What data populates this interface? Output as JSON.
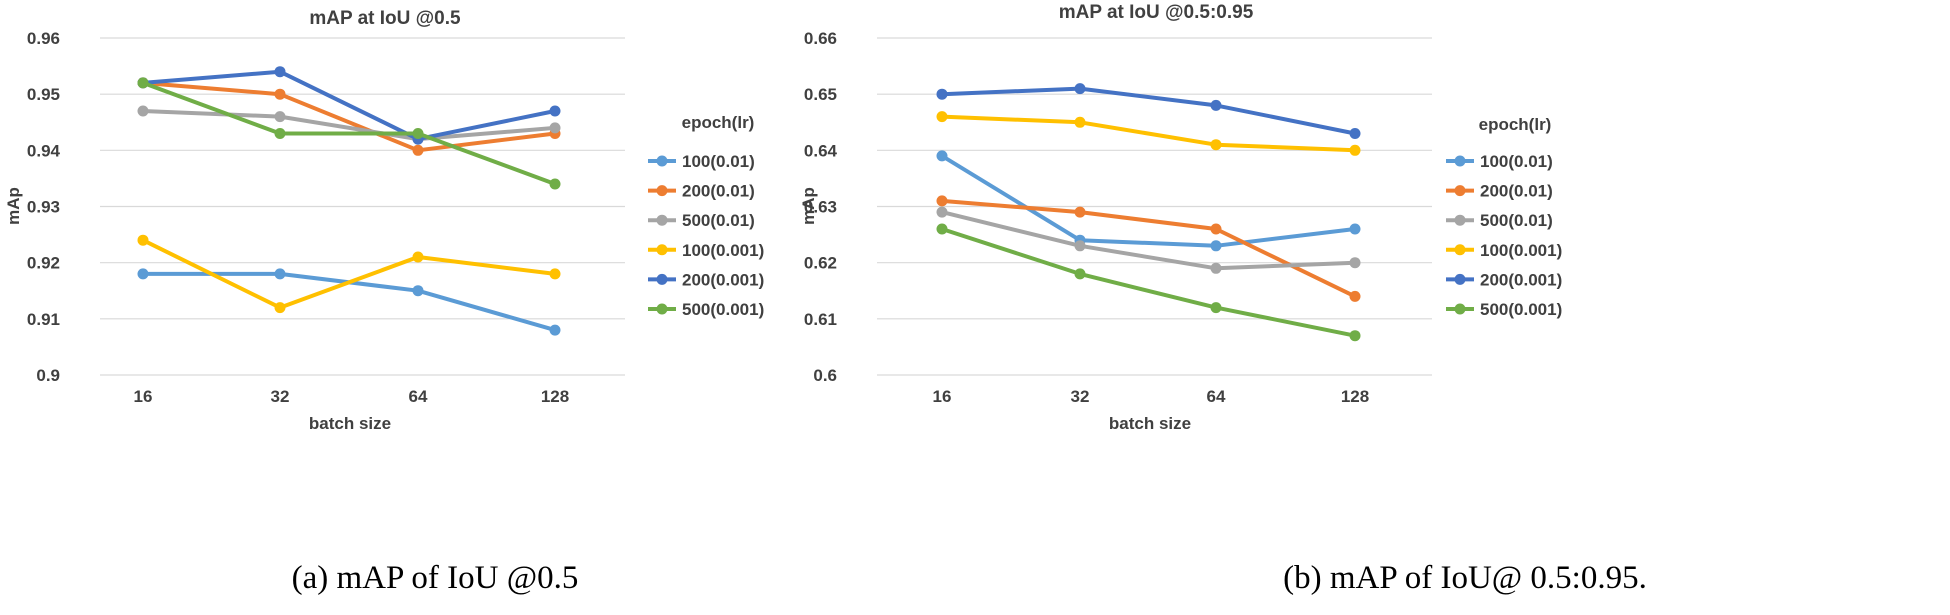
{
  "captions": {
    "a": "(a) mAP of IoU @0.5",
    "b": "(b) mAP of IoU@ 0.5:0.95."
  },
  "colors": {
    "100(0.01)": "#5b9bd5",
    "200(0.01)": "#ed7d31",
    "500(0.01)": "#a5a5a5",
    "100(0.001)": "#ffc000",
    "200(0.001)": "#4472c4",
    "500(0.001)": "#70ad47",
    "grid": "#d9d9d9",
    "text": "#404040"
  },
  "chart_data": [
    {
      "type": "line",
      "title": "mAP at IoU @0.5",
      "xlabel": "batch size",
      "ylabel": "mAp",
      "categories": [
        "16",
        "32",
        "64",
        "128"
      ],
      "ylim": [
        0.9,
        0.96
      ],
      "yticks": [
        "0.9",
        "0.91",
        "0.92",
        "0.93",
        "0.94",
        "0.95",
        "0.96"
      ],
      "legend_title": "epoch(lr)",
      "legend_position": "right",
      "series": [
        {
          "name": "100(0.01)",
          "values": [
            0.918,
            0.918,
            0.915,
            0.908
          ]
        },
        {
          "name": "200(0.01)",
          "values": [
            0.952,
            0.95,
            0.94,
            0.943
          ]
        },
        {
          "name": "500(0.01)",
          "values": [
            0.947,
            0.946,
            0.942,
            0.944
          ]
        },
        {
          "name": "100(0.001)",
          "values": [
            0.924,
            0.912,
            0.921,
            0.918
          ]
        },
        {
          "name": "200(0.001)",
          "values": [
            0.952,
            0.954,
            0.942,
            0.947
          ]
        },
        {
          "name": "500(0.001)",
          "values": [
            0.952,
            0.943,
            0.943,
            0.934
          ]
        }
      ]
    },
    {
      "type": "line",
      "title": "mAP at IoU @0.5:0.95",
      "xlabel": "batch size",
      "ylabel": "mAp",
      "categories": [
        "16",
        "32",
        "64",
        "128"
      ],
      "ylim": [
        0.6,
        0.66
      ],
      "yticks": [
        "0.6",
        "0.61",
        "0.62",
        "0.63",
        "0.64",
        "0.65",
        "0.66"
      ],
      "legend_title": "epoch(lr)",
      "legend_position": "right",
      "series": [
        {
          "name": "100(0.01)",
          "values": [
            0.639,
            0.624,
            0.623,
            0.626
          ]
        },
        {
          "name": "200(0.01)",
          "values": [
            0.631,
            0.629,
            0.626,
            0.614
          ]
        },
        {
          "name": "500(0.01)",
          "values": [
            0.629,
            0.623,
            0.619,
            0.62
          ]
        },
        {
          "name": "100(0.001)",
          "values": [
            0.646,
            0.645,
            0.641,
            0.64
          ]
        },
        {
          "name": "200(0.001)",
          "values": [
            0.65,
            0.651,
            0.648,
            0.643
          ]
        },
        {
          "name": "500(0.001)",
          "values": [
            0.626,
            0.618,
            0.612,
            0.607
          ]
        }
      ]
    }
  ]
}
